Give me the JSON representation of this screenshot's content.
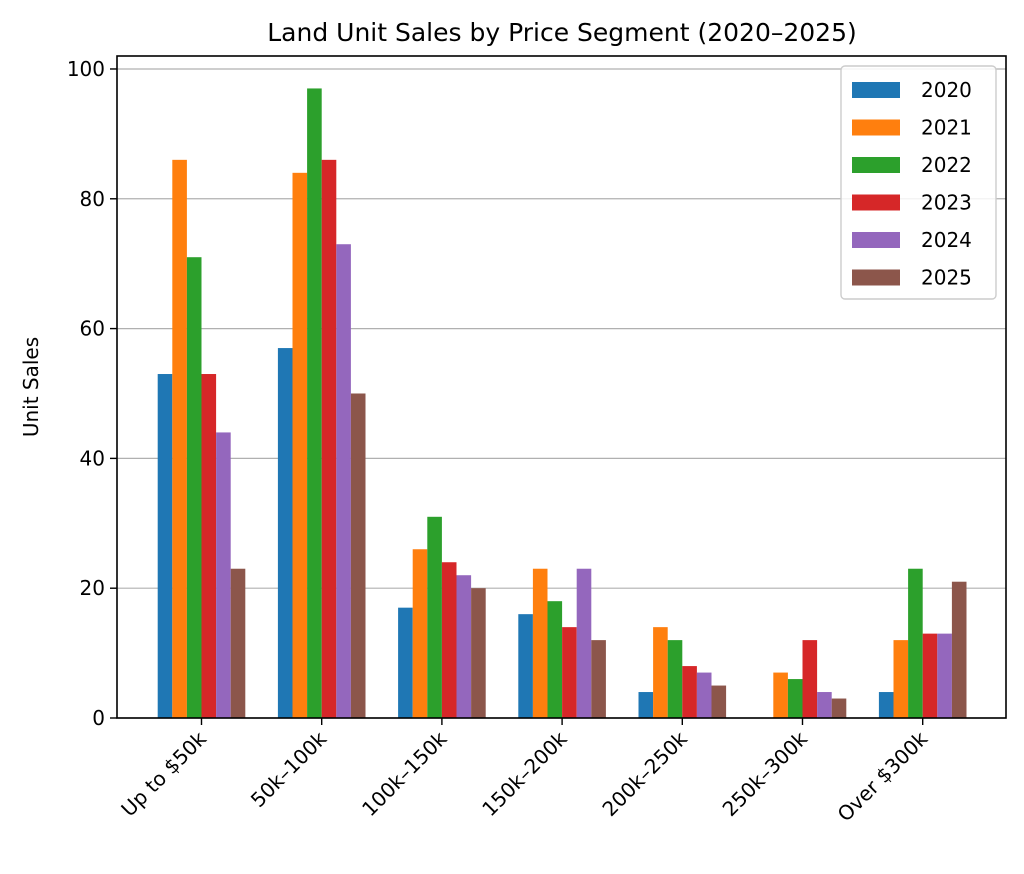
{
  "chart_data": {
    "type": "bar",
    "title": "Land Unit Sales by Price Segment (2020–2025)",
    "xlabel": "",
    "ylabel": "Unit Sales",
    "ylim": [
      0,
      102
    ],
    "yticks": [
      0,
      20,
      40,
      60,
      80,
      100
    ],
    "grid": "y",
    "legend_position": "top-right",
    "categories": [
      "Up to $50k",
      "50k–100k",
      "100k–150k",
      "150k–200k",
      "200k–250k",
      "250k–300k",
      "Over $300k"
    ],
    "series": [
      {
        "name": "2020",
        "color": "#1f77b4",
        "values": [
          53,
          57,
          17,
          16,
          4,
          0,
          4
        ]
      },
      {
        "name": "2021",
        "color": "#ff7f0e",
        "values": [
          86,
          84,
          26,
          23,
          14,
          7,
          12
        ]
      },
      {
        "name": "2022",
        "color": "#2ca02c",
        "values": [
          71,
          97,
          31,
          18,
          12,
          6,
          23
        ]
      },
      {
        "name": "2023",
        "color": "#d62728",
        "values": [
          53,
          86,
          24,
          14,
          8,
          12,
          13
        ]
      },
      {
        "name": "2024",
        "color": "#9467bd",
        "values": [
          44,
          73,
          22,
          23,
          7,
          4,
          13
        ]
      },
      {
        "name": "2025",
        "color": "#8c564b",
        "values": [
          23,
          50,
          20,
          12,
          5,
          3,
          21
        ]
      }
    ]
  }
}
